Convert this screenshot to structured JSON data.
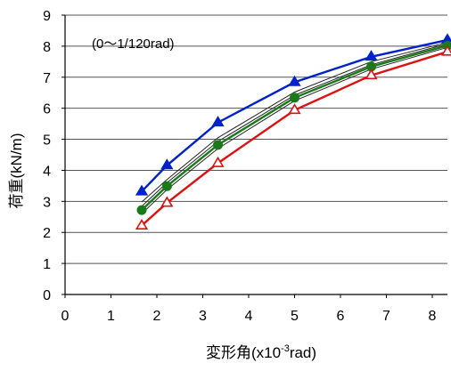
{
  "chart_data": {
    "type": "line",
    "title": "",
    "annotation": "(0〜1/120rad)",
    "xlabel": {
      "prefix": "変形角(x10",
      "sup": "-3",
      "suffix": "rad)"
    },
    "ylabel": "荷重(kN/m)",
    "xlim": [
      0,
      8.33
    ],
    "ylim": [
      0,
      9
    ],
    "xticks": [
      0,
      1,
      2,
      3,
      4,
      5,
      6,
      7,
      8
    ],
    "yticks": [
      0,
      1,
      2,
      3,
      4,
      5,
      6,
      7,
      8,
      9
    ],
    "grid": {
      "horizontal": true,
      "vertical": false
    },
    "legend": "none",
    "x": [
      1.67,
      2.22,
      3.33,
      5.0,
      6.67,
      8.33
    ],
    "series": [
      {
        "values": [
          3.32,
          4.16,
          5.54,
          6.84,
          7.66,
          8.2
        ],
        "color": "#0022cc",
        "marker": "triangle-filled"
      },
      {
        "values": [
          2.98,
          3.7,
          5.05,
          6.52,
          7.5,
          8.12
        ],
        "color": "#222222",
        "marker": "none"
      },
      {
        "values": [
          2.84,
          3.6,
          4.93,
          6.42,
          7.4,
          8.08
        ],
        "color": "#222222",
        "marker": "none"
      },
      {
        "values": [
          2.72,
          3.49,
          4.82,
          6.34,
          7.34,
          8.02
        ],
        "color": "#1a7a1a",
        "marker": "circle-filled"
      },
      {
        "values": [
          2.6,
          3.38,
          4.7,
          6.24,
          7.26,
          7.96
        ],
        "color": "#222222",
        "marker": "none"
      },
      {
        "values": [
          2.22,
          2.95,
          4.23,
          5.94,
          7.06,
          7.82
        ],
        "color": "#dd1111",
        "marker": "triangle-open"
      }
    ]
  }
}
